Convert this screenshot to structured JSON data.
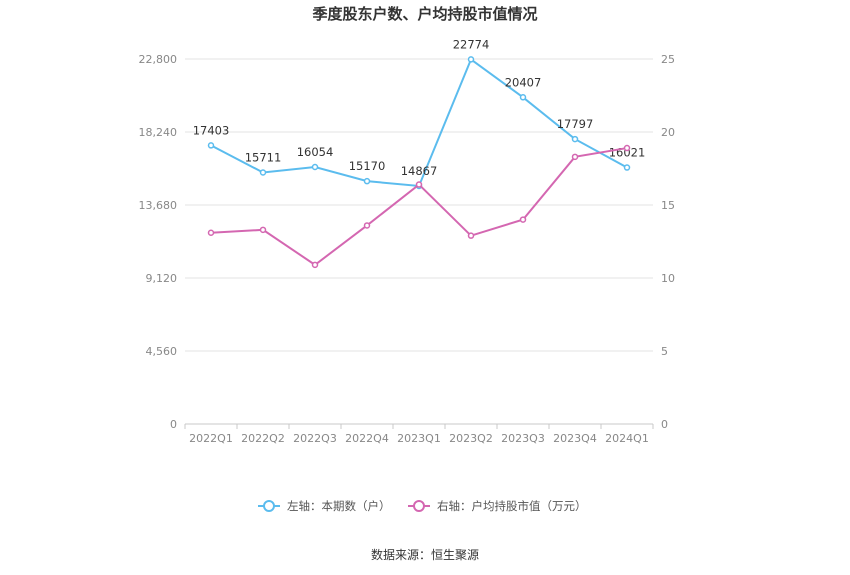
{
  "chart_data": {
    "type": "line",
    "title": "季度股东户数、户均持股市值情况",
    "categories": [
      "2022Q1",
      "2022Q2",
      "2022Q3",
      "2022Q4",
      "2023Q1",
      "2023Q2",
      "2023Q3",
      "2023Q4",
      "2024Q1"
    ],
    "series": [
      {
        "name": "左轴：本期数（户）",
        "axis": "left",
        "color": "#5bbcee",
        "values": [
          17403,
          15711,
          16054,
          15170,
          14867,
          22774,
          20407,
          17797,
          16021
        ]
      },
      {
        "name": "右轴：户均持股市值（万元）",
        "axis": "right",
        "color": "#d467b1",
        "values": [
          13.1,
          13.3,
          10.9,
          13.6,
          16.4,
          12.9,
          14.0,
          18.3,
          18.9
        ]
      }
    ],
    "left_axis": {
      "min": 0,
      "max": 22800,
      "ticks": [
        "0",
        "4,560",
        "9,120",
        "13,680",
        "18,240",
        "22,800"
      ]
    },
    "right_axis": {
      "min": 0,
      "max": 25,
      "ticks": [
        "0",
        "5",
        "10",
        "15",
        "20",
        "25"
      ]
    },
    "grid": true,
    "legend_position": "bottom"
  },
  "source_text": "数据来源：恒生聚源"
}
